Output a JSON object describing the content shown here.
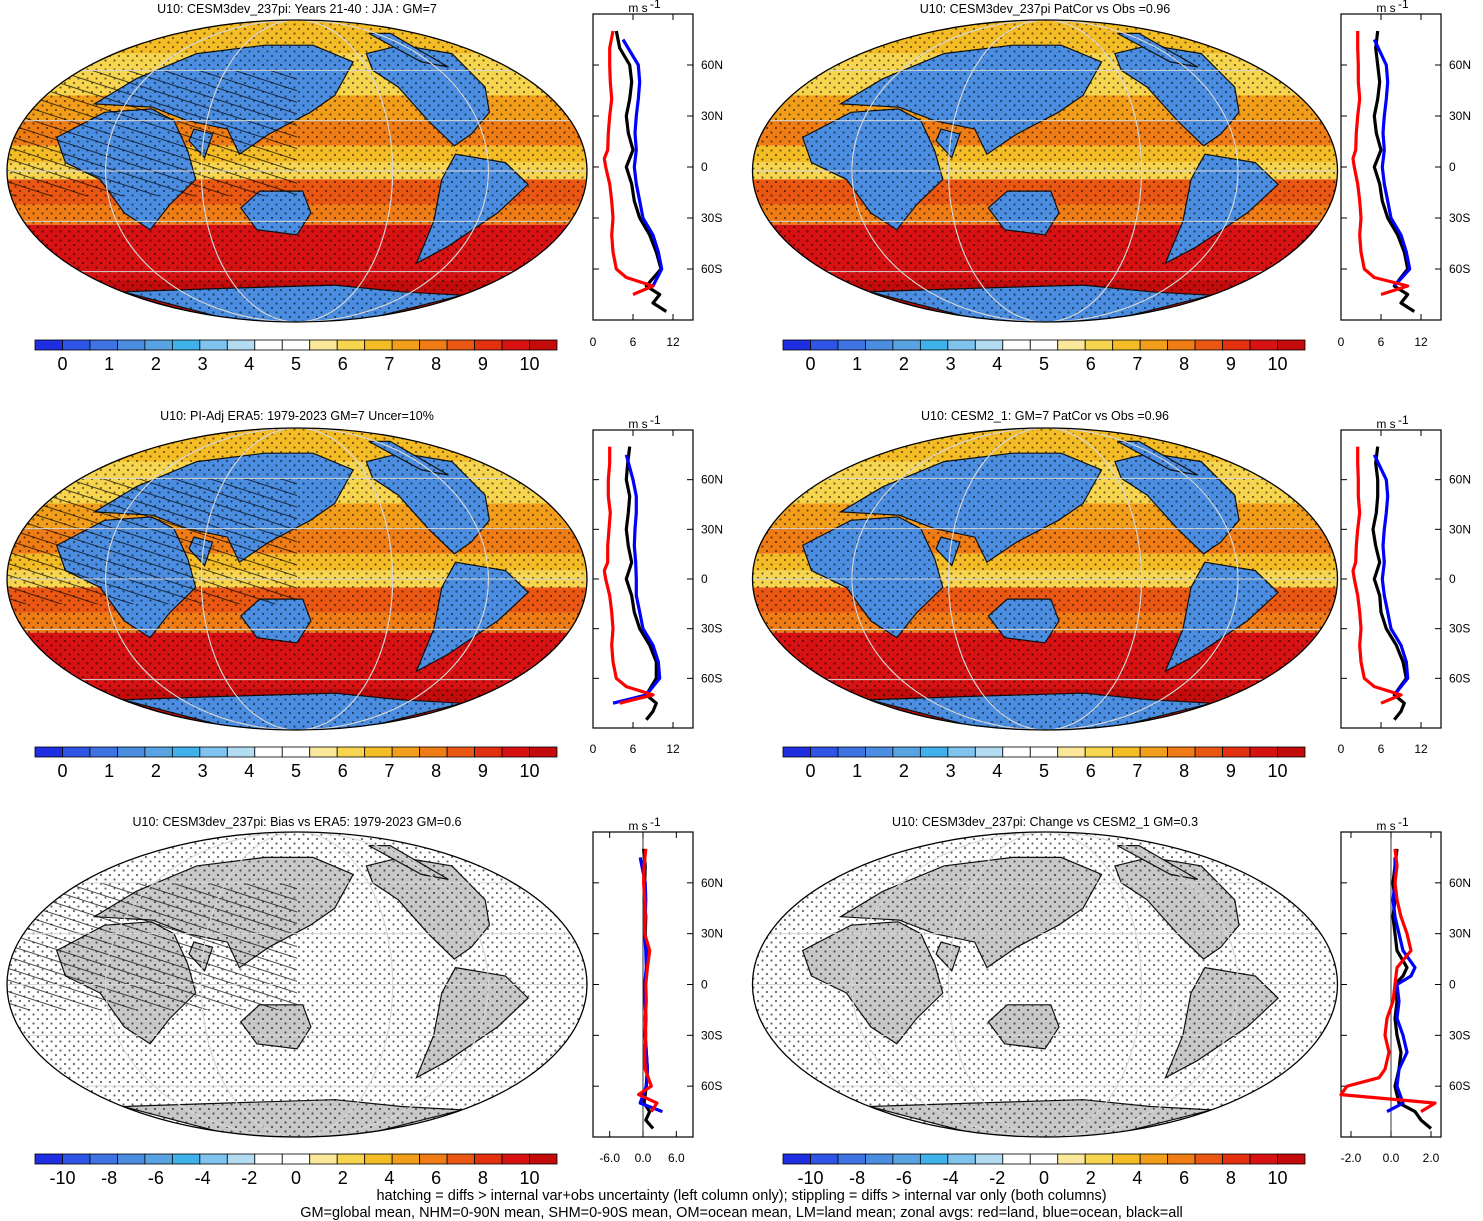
{
  "colors": {
    "scale": [
      "#1f2ee0",
      "#2f55e6",
      "#3d73e3",
      "#4b8de0",
      "#5aa3e2",
      "#3fb2ec",
      "#7fc3ee",
      "#b3dcf3",
      "#ffffff",
      "#ffffff",
      "#fbe89a",
      "#f7d54f",
      "#f5bd25",
      "#f29e1a",
      "#ef7c14",
      "#ea5712",
      "#e3300f",
      "#d81212",
      "#c40b0b"
    ],
    "land_neutral": "#c8c8c8",
    "land_line": "#111111",
    "graticule": "#d7d7d7",
    "zonal_land": "#ff0000",
    "zonal_ocean": "#0000ff",
    "zonal_all": "#000000"
  },
  "panels": [
    {
      "id": "model-clim",
      "title": "U10: CESM3dev_237pi: Years 21-40 : JJA : GM=7",
      "cbar_labels": [
        "0",
        "1",
        "2",
        "3",
        "4",
        "5",
        "6",
        "7",
        "8",
        "9",
        "10"
      ],
      "zonal_xticks": [
        "0",
        "6",
        "12"
      ],
      "zonal_lat_labels": [
        "60N",
        "30N",
        "0",
        "30S",
        "60S"
      ],
      "zonal_units": "m s",
      "zonal_units_sup": "-1"
    },
    {
      "id": "model-patcor",
      "title": "U10: CESM3dev_237pi PatCor vs Obs =0.96",
      "cbar_labels": [
        "0",
        "1",
        "2",
        "3",
        "4",
        "5",
        "6",
        "7",
        "8",
        "9",
        "10"
      ],
      "zonal_xticks": [
        "0",
        "6",
        "12"
      ],
      "zonal_lat_labels": [
        "60N",
        "30N",
        "0",
        "30S",
        "60S"
      ],
      "zonal_units": "m s",
      "zonal_units_sup": "-1"
    },
    {
      "id": "obs-clim",
      "title": "U10: PI-Adj ERA5: 1979-2023 GM=7 Uncer=10%",
      "cbar_labels": [
        "0",
        "1",
        "2",
        "3",
        "4",
        "5",
        "6",
        "7",
        "8",
        "9",
        "10"
      ],
      "zonal_xticks": [
        "0",
        "6",
        "12"
      ],
      "zonal_lat_labels": [
        "60N",
        "30N",
        "0",
        "30S",
        "60S"
      ],
      "zonal_units": "m s",
      "zonal_units_sup": "-1"
    },
    {
      "id": "cesm2-clim",
      "title": "U10: CESM2_1: GM=7 PatCor vs Obs =0.96",
      "cbar_labels": [
        "0",
        "1",
        "2",
        "3",
        "4",
        "5",
        "6",
        "7",
        "8",
        "9",
        "10"
      ],
      "zonal_xticks": [
        "0",
        "6",
        "12"
      ],
      "zonal_lat_labels": [
        "60N",
        "30N",
        "0",
        "30S",
        "60S"
      ],
      "zonal_units": "m s",
      "zonal_units_sup": "-1"
    },
    {
      "id": "bias",
      "title": "U10: CESM3dev_237pi: Bias vs ERA5: 1979-2023 GM=0.6",
      "cbar_labels": [
        "-10",
        "-8",
        "-6",
        "-4",
        "-2",
        "0",
        "2",
        "4",
        "6",
        "8",
        "10"
      ],
      "zonal_xticks": [
        "-6.0",
        "0.0",
        "6.0"
      ],
      "zonal_lat_labels": [
        "60N",
        "30N",
        "0",
        "30S",
        "60S"
      ],
      "zonal_units": "m s",
      "zonal_units_sup": "-1"
    },
    {
      "id": "change",
      "title": "U10: CESM3dev_237pi: Change vs CESM2_1 GM=0.3",
      "cbar_labels": [
        "-10",
        "-8",
        "-6",
        "-4",
        "-2",
        "0",
        "2",
        "4",
        "6",
        "8",
        "10"
      ],
      "zonal_xticks": [
        "-2.0",
        "0.0",
        "2.0"
      ],
      "zonal_lat_labels": [
        "60N",
        "30N",
        "0",
        "30S",
        "60S"
      ],
      "zonal_units": "m s",
      "zonal_units_sup": "-1"
    }
  ],
  "chart_data": [
    {
      "type": "line",
      "panel": "model-clim zonal mean",
      "xlim": [
        0,
        15
      ],
      "ylim": [
        -90,
        90
      ],
      "series": [
        {
          "color": "black",
          "lat": [
            80,
            70,
            60,
            50,
            40,
            30,
            20,
            10,
            0,
            -10,
            -20,
            -30,
            -40,
            -50,
            -60,
            -70,
            -75,
            -80,
            -85
          ],
          "values": [
            3.5,
            4,
            5.5,
            5.8,
            5.5,
            5,
            5.3,
            6,
            5,
            5.8,
            6.2,
            7,
            8.5,
            9.5,
            10.2,
            8,
            10,
            9,
            11
          ]
        },
        {
          "color": "blue",
          "lat": [
            75,
            60,
            50,
            40,
            30,
            20,
            10,
            0,
            -10,
            -20,
            -30,
            -40,
            -50,
            -60,
            -70
          ],
          "values": [
            4.5,
            6.8,
            7,
            6.8,
            6.5,
            6.3,
            6.5,
            6.2,
            6.5,
            7,
            7.5,
            9,
            9.8,
            10.3,
            9
          ]
        },
        {
          "color": "red",
          "lat": [
            80,
            70,
            60,
            50,
            40,
            30,
            20,
            10,
            5,
            0,
            -10,
            -20,
            -30,
            -40,
            -50,
            -60,
            -65,
            -70,
            -75
          ],
          "values": [
            3,
            2.5,
            2.5,
            2.6,
            2.8,
            2.5,
            2.3,
            2.2,
            1.7,
            1.9,
            2.5,
            2.8,
            3,
            2.8,
            3,
            3.5,
            5,
            9,
            6
          ]
        }
      ]
    },
    {
      "type": "line",
      "panel": "model-patcor zonal mean",
      "xlim": [
        0,
        15
      ],
      "ylim": [
        -90,
        90
      ],
      "series": [
        {
          "color": "black",
          "lat": [
            80,
            70,
            60,
            50,
            40,
            30,
            20,
            10,
            0,
            -10,
            -20,
            -30,
            -40,
            -50,
            -60,
            -70,
            -75,
            -80,
            -85
          ],
          "values": [
            5.5,
            5.2,
            5.5,
            5.8,
            5.5,
            5,
            5.3,
            6,
            5,
            5.8,
            6.2,
            7,
            8.5,
            9.5,
            10,
            8,
            10,
            9,
            11
          ]
        },
        {
          "color": "blue",
          "lat": [
            75,
            60,
            50,
            40,
            30,
            20,
            10,
            0,
            -10,
            -20,
            -30,
            -40,
            -50,
            -60,
            -70
          ],
          "values": [
            5,
            6.8,
            7,
            6.8,
            6.5,
            6.3,
            6.5,
            6.2,
            6.5,
            7,
            7.5,
            9,
            9.8,
            10.3,
            8
          ]
        },
        {
          "color": "red",
          "lat": [
            80,
            70,
            60,
            50,
            40,
            30,
            20,
            10,
            5,
            0,
            -10,
            -20,
            -30,
            -40,
            -50,
            -60,
            -65,
            -70,
            -75
          ],
          "values": [
            2.5,
            2.5,
            2.6,
            2.6,
            2.8,
            2.5,
            2.3,
            2.2,
            1.8,
            2,
            2.5,
            2.8,
            3,
            2.8,
            3,
            3.5,
            5,
            10,
            6
          ]
        }
      ]
    },
    {
      "type": "line",
      "panel": "obs-clim zonal mean",
      "xlim": [
        0,
        15
      ],
      "ylim": [
        -90,
        90
      ],
      "series": [
        {
          "color": "black",
          "lat": [
            80,
            70,
            60,
            50,
            40,
            30,
            20,
            10,
            0,
            -10,
            -20,
            -30,
            -40,
            -50,
            -60,
            -70,
            -75,
            -80,
            -85
          ],
          "values": [
            5.5,
            5.2,
            5,
            5.5,
            5.3,
            5,
            5.3,
            5.8,
            5,
            5.8,
            6.2,
            7,
            8.5,
            9.5,
            9.5,
            8,
            9.5,
            9,
            8
          ]
        },
        {
          "color": "blue",
          "lat": [
            75,
            60,
            50,
            40,
            30,
            20,
            10,
            0,
            -10,
            -20,
            -30,
            -40,
            -50,
            -60,
            -70,
            -75
          ],
          "values": [
            5,
            6,
            6.5,
            6.5,
            6.3,
            6.2,
            6.4,
            6.5,
            6.5,
            7,
            7.5,
            9,
            9.8,
            10,
            8,
            3
          ]
        },
        {
          "color": "red",
          "lat": [
            80,
            70,
            60,
            50,
            40,
            30,
            20,
            10,
            5,
            0,
            -10,
            -20,
            -30,
            -40,
            -50,
            -60,
            -65,
            -70,
            -75
          ],
          "values": [
            2.5,
            2.5,
            2.3,
            2.3,
            2.6,
            2.4,
            2.2,
            2.2,
            1.7,
            1.9,
            2.5,
            2.8,
            3,
            2.8,
            3,
            3.5,
            5,
            9,
            4
          ]
        }
      ]
    },
    {
      "type": "line",
      "panel": "cesm2-clim zonal mean",
      "xlim": [
        0,
        15
      ],
      "ylim": [
        -90,
        90
      ],
      "series": [
        {
          "color": "black",
          "lat": [
            80,
            70,
            60,
            50,
            40,
            30,
            20,
            10,
            0,
            -10,
            -20,
            -30,
            -40,
            -50,
            -60,
            -70,
            -75,
            -80,
            -85
          ],
          "values": [
            5.5,
            5.2,
            5.5,
            5.5,
            5.3,
            4.8,
            5.2,
            5.8,
            5,
            5.8,
            6,
            6.8,
            8.3,
            9.3,
            9.8,
            8,
            9.5,
            9,
            8
          ]
        },
        {
          "color": "blue",
          "lat": [
            75,
            60,
            50,
            40,
            30,
            20,
            10,
            0,
            -10,
            -20,
            -30,
            -40,
            -50,
            -60,
            -70
          ],
          "values": [
            5,
            6.8,
            7,
            6.8,
            6.5,
            6.3,
            6.5,
            6.2,
            6.5,
            7,
            7.5,
            9,
            9.8,
            10,
            8
          ]
        },
        {
          "color": "red",
          "lat": [
            80,
            70,
            60,
            50,
            40,
            30,
            20,
            10,
            5,
            0,
            -10,
            -20,
            -30,
            -40,
            -50,
            -60,
            -65,
            -70,
            -75
          ],
          "values": [
            2.5,
            2.5,
            2.6,
            2.6,
            2.8,
            2.5,
            2.3,
            2.2,
            1.8,
            2,
            2.5,
            2.8,
            3,
            2.8,
            3,
            3.5,
            5,
            9,
            6
          ]
        }
      ]
    },
    {
      "type": "line",
      "panel": "bias zonal mean",
      "xlim": [
        -9,
        9
      ],
      "ylim": [
        -90,
        90
      ],
      "series": [
        {
          "color": "black",
          "lat": [
            80,
            70,
            60,
            50,
            40,
            30,
            20,
            10,
            0,
            -10,
            -20,
            -30,
            -40,
            -50,
            -60,
            -70,
            -75,
            -80,
            -85
          ],
          "values": [
            0.1,
            0.4,
            0.3,
            0.2,
            0.5,
            0.4,
            0.6,
            0.7,
            0.3,
            0.4,
            0.5,
            0.4,
            0.6,
            0.8,
            0.6,
            0.2,
            1.2,
            0.5,
            1.8
          ]
        },
        {
          "color": "blue",
          "lat": [
            75,
            60,
            50,
            40,
            30,
            20,
            10,
            0,
            -10,
            -20,
            -30,
            -40,
            -50,
            -60,
            -70,
            -75
          ],
          "values": [
            -0.5,
            0.4,
            0.5,
            0.4,
            0.3,
            0.5,
            0.6,
            0.3,
            0.4,
            0.5,
            0.4,
            0.6,
            0.8,
            0.6,
            -0.5,
            3.5
          ]
        },
        {
          "color": "red",
          "lat": [
            80,
            70,
            60,
            50,
            40,
            30,
            20,
            10,
            0,
            -10,
            -20,
            -30,
            -40,
            -50,
            -60,
            -65,
            -70,
            -75
          ],
          "values": [
            0.5,
            0.2,
            0.1,
            0.3,
            0.4,
            0.3,
            1.2,
            0.8,
            0.5,
            0.6,
            0.4,
            0.5,
            0.3,
            0.4,
            1.5,
            -0.8,
            2.5,
            1.5
          ]
        }
      ]
    },
    {
      "type": "line",
      "panel": "change zonal mean",
      "xlim": [
        -2.5,
        2.5
      ],
      "ylim": [
        -90,
        90
      ],
      "series": [
        {
          "color": "black",
          "lat": [
            80,
            70,
            60,
            50,
            40,
            30,
            20,
            10,
            5,
            0,
            -10,
            -20,
            -30,
            -40,
            -50,
            -60,
            -70,
            -75,
            -80,
            -85
          ],
          "values": [
            0.3,
            0.2,
            0.1,
            0.2,
            0.1,
            0.2,
            0.3,
            0.8,
            0.6,
            0.2,
            0.3,
            0.2,
            0.3,
            0.5,
            0.4,
            0.2,
            0.4,
            1.2,
            1.5,
            2
          ]
        },
        {
          "color": "blue",
          "lat": [
            75,
            60,
            50,
            40,
            30,
            20,
            10,
            5,
            0,
            -10,
            -20,
            -30,
            -40,
            -50,
            -60,
            -70,
            -75
          ],
          "values": [
            0.2,
            0.2,
            0.1,
            0.2,
            0.4,
            0.6,
            1.2,
            1.0,
            0.3,
            0.4,
            0.3,
            0.6,
            0.8,
            0.4,
            0.3,
            0.6,
            -0.2
          ]
        },
        {
          "color": "red",
          "lat": [
            80,
            70,
            60,
            50,
            40,
            30,
            20,
            10,
            0,
            -10,
            -20,
            -30,
            -40,
            -50,
            -55,
            -60,
            -65,
            -70,
            -75
          ],
          "values": [
            0.2,
            0.3,
            0.2,
            0.3,
            0.5,
            0.8,
            1.0,
            0.3,
            0.2,
            0.1,
            -0.2,
            -0.3,
            -0.1,
            -0.3,
            -0.6,
            -2.2,
            -2.5,
            2.2,
            1.5
          ]
        }
      ]
    }
  ],
  "footer": {
    "line1": "hatching = diffs > internal var+obs uncertainty (left column only); stippling = diffs > internal var only (both columns)",
    "line2": "GM=global mean, NHM=0-90N mean, SHM=0-90S mean, OM=ocean mean, LM=land mean; zonal avgs: red=land, blue=ocean, black=all"
  }
}
